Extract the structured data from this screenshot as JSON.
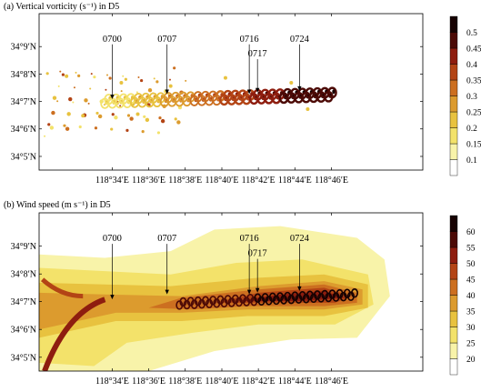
{
  "chart_data": [
    {
      "type": "heatmap",
      "title": "(a) Vertical vorticity (s⁻¹) in D5",
      "xlabel": "",
      "ylabel": "",
      "xlim": [
        118.5,
        118.85
      ],
      "ylim": [
        34.075,
        34.17
      ],
      "x_ticks": [
        {
          "value": 118.5667,
          "label": "118°34′E"
        },
        {
          "value": 118.6,
          "label": "118°36′E"
        },
        {
          "value": 118.6333,
          "label": "118°38′E"
        },
        {
          "value": 118.6667,
          "label": "118°40′E"
        },
        {
          "value": 118.7,
          "label": "118°42′E"
        },
        {
          "value": 118.7333,
          "label": "118°44′E"
        },
        {
          "value": 118.7667,
          "label": "118°46′E"
        }
      ],
      "y_ticks": [
        {
          "value": 34.0833,
          "label": "34°5′N"
        },
        {
          "value": 34.1,
          "label": "34°6′N"
        },
        {
          "value": 34.1167,
          "label": "34°7′N"
        },
        {
          "value": 34.1333,
          "label": "34°8′N"
        },
        {
          "value": 34.15,
          "label": "34°9′N"
        }
      ],
      "colorbar": {
        "levels": [
          0.1,
          0.15,
          0.2,
          0.25,
          0.3,
          0.35,
          0.4,
          0.45,
          0.5
        ],
        "labels": [
          "0.1",
          "0.15",
          "0.2",
          "0.25",
          "0.3",
          "0.35",
          "0.4",
          "0.45",
          "0.5"
        ],
        "colors": [
          "#ffffff",
          "#f8f3a9",
          "#f3e26a",
          "#e8c23f",
          "#dc9b2e",
          "#cc6f20",
          "#b34415",
          "#8e1d0f",
          "#4c0a06",
          "#170202"
        ]
      },
      "annotations": [
        {
          "label": "0700",
          "lon": 118.5667,
          "lat": 34.117
        },
        {
          "label": "0707",
          "lon": 118.6167,
          "lat": 34.12
        },
        {
          "label": "0716",
          "lon": 118.6917,
          "lat": 34.12
        },
        {
          "label": "0717",
          "lon": 118.6992,
          "lat": 34.121
        },
        {
          "label": "0724",
          "lon": 118.7375,
          "lat": 34.122
        }
      ]
    },
    {
      "type": "heatmap",
      "title": "(b) Wind speed (m s⁻¹) in D5",
      "xlabel": "",
      "ylabel": "",
      "xlim": [
        118.5,
        118.85
      ],
      "ylim": [
        34.075,
        34.17
      ],
      "x_ticks": [
        {
          "value": 118.5667,
          "label": "118°34′E"
        },
        {
          "value": 118.6,
          "label": "118°36′E"
        },
        {
          "value": 118.6333,
          "label": "118°38′E"
        },
        {
          "value": 118.6667,
          "label": "118°40′E"
        },
        {
          "value": 118.7,
          "label": "118°42′E"
        },
        {
          "value": 118.7333,
          "label": "118°44′E"
        },
        {
          "value": 118.7667,
          "label": "118°46′E"
        }
      ],
      "y_ticks": [
        {
          "value": 34.0833,
          "label": "34°5′N"
        },
        {
          "value": 34.1,
          "label": "34°6′N"
        },
        {
          "value": 34.1167,
          "label": "34°7′N"
        },
        {
          "value": 34.1333,
          "label": "34°8′N"
        },
        {
          "value": 34.15,
          "label": "34°9′N"
        }
      ],
      "colorbar": {
        "levels": [
          20,
          25,
          30,
          35,
          40,
          45,
          50,
          55,
          60
        ],
        "labels": [
          "20",
          "25",
          "30",
          "35",
          "40",
          "45",
          "50",
          "55",
          "60"
        ],
        "colors": [
          "#ffffff",
          "#f8f3a9",
          "#f3e26a",
          "#e8c23f",
          "#dc9b2e",
          "#cc6f20",
          "#b34415",
          "#8e1d0f",
          "#4c0a06",
          "#170202"
        ]
      },
      "annotations": [
        {
          "label": "0700",
          "lon": 118.5667,
          "lat": 34.117
        },
        {
          "label": "0707",
          "lon": 118.6167,
          "lat": 34.12
        },
        {
          "label": "0716",
          "lon": 118.6917,
          "lat": 34.12
        },
        {
          "label": "0717",
          "lon": 118.6992,
          "lat": 34.121
        },
        {
          "label": "0724",
          "lon": 118.7375,
          "lat": 34.122
        }
      ]
    }
  ]
}
